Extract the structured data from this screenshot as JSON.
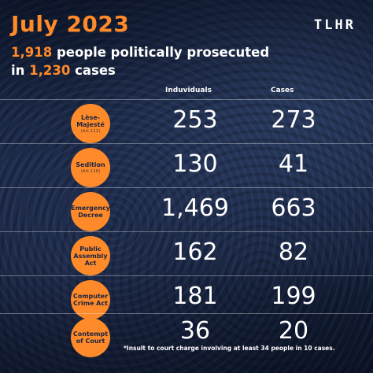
{
  "header": {
    "title": "July 2023",
    "line1_num": "1,918",
    "line1_text": " people politically prosecuted",
    "line2_pre": "in ",
    "line2_num": "1,230",
    "line2_text": " cases",
    "logo": "TLHR"
  },
  "columns": {
    "individuals": "Induviduals",
    "cases": "Cases"
  },
  "rows": [
    {
      "label": "Lèse-\nMajesté",
      "article": "(Art.112)",
      "individuals": "253",
      "cases": "273"
    },
    {
      "label": "Sedition",
      "article": "(Art.116)",
      "individuals": "130",
      "cases": "41"
    },
    {
      "label": "Emergency\nDecree",
      "article": "",
      "individuals": "1,469",
      "cases": "663"
    },
    {
      "label": "Public\nAssembly\nAct",
      "article": "",
      "individuals": "162",
      "cases": "82"
    },
    {
      "label": "Computer\nCrime Act",
      "article": "",
      "individuals": "181",
      "cases": "199"
    },
    {
      "label": "Contempt\nof Court",
      "article": "",
      "individuals": "36",
      "cases": "20"
    }
  ],
  "footnote": "*Insult to court charge involving at least 34 people in 10 cases.",
  "colors": {
    "accent": "#ff8a2a",
    "background": "#16233f",
    "text": "#ffffff"
  }
}
